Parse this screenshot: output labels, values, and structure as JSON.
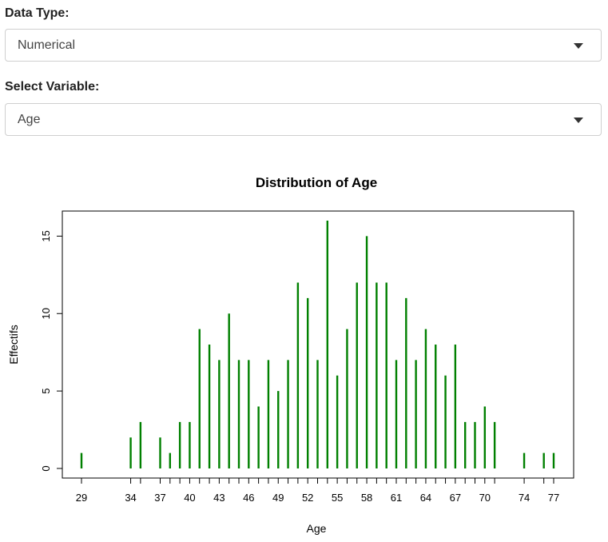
{
  "controls": {
    "data_type": {
      "label": "Data Type:",
      "value": "Numerical"
    },
    "variable": {
      "label": "Select Variable:",
      "value": "Age"
    }
  },
  "chart_data": {
    "type": "bar",
    "title": "Distribution of Age",
    "xlabel": "Age",
    "ylabel": "Effectifs",
    "xlim": [
      28,
      78
    ],
    "ylim": [
      0,
      16
    ],
    "yticks": [
      0,
      5,
      10,
      15
    ],
    "xtick_labels": [
      29,
      34,
      37,
      40,
      43,
      46,
      49,
      52,
      55,
      58,
      61,
      64,
      67,
      70,
      74,
      77
    ],
    "bar_color": "#008000",
    "x": [
      29,
      34,
      35,
      37,
      38,
      39,
      40,
      41,
      42,
      43,
      44,
      45,
      46,
      47,
      48,
      49,
      50,
      51,
      52,
      53,
      54,
      55,
      56,
      57,
      58,
      59,
      60,
      61,
      62,
      63,
      64,
      65,
      66,
      67,
      68,
      69,
      70,
      71,
      74,
      76,
      77
    ],
    "values": [
      1,
      2,
      3,
      2,
      1,
      3,
      3,
      9,
      8,
      7,
      10,
      7,
      7,
      4,
      7,
      5,
      7,
      12,
      11,
      7,
      16,
      6,
      9,
      12,
      15,
      12,
      12,
      7,
      11,
      7,
      9,
      8,
      6,
      8,
      3,
      3,
      4,
      3,
      1,
      1,
      1
    ]
  }
}
